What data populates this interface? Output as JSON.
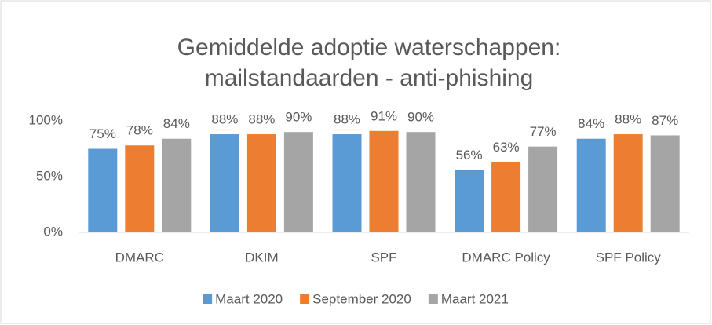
{
  "chart_data": {
    "type": "bar",
    "title": [
      "Gemiddelde adoptie waterschappen:",
      "mailstandaarden - anti-phishing"
    ],
    "categories": [
      "DMARC",
      "DKIM",
      "SPF",
      "DMARC Policy",
      "SPF Policy"
    ],
    "series": [
      {
        "name": "Maart 2020",
        "color": "#5b9bd5",
        "values": [
          75,
          88,
          88,
          56,
          84
        ],
        "value_labels": [
          "75%",
          "88%",
          "88%",
          "56%",
          "84%"
        ]
      },
      {
        "name": "September 2020",
        "color": "#ed7d31",
        "values": [
          78,
          88,
          91,
          63,
          88
        ],
        "value_labels": [
          "78%",
          "88%",
          "91%",
          "63%",
          "88%"
        ]
      },
      {
        "name": "Maart 2021",
        "color": "#a5a5a5",
        "values": [
          84,
          90,
          90,
          77,
          87
        ],
        "value_labels": [
          "84%",
          "90%",
          "90%",
          "77%",
          "87%"
        ]
      }
    ],
    "ylim": [
      0,
      100
    ],
    "yticks": [
      {
        "value": 0,
        "label": "0%"
      },
      {
        "value": 50,
        "label": "50%"
      },
      {
        "value": 100,
        "label": "100%"
      }
    ],
    "grid": false,
    "legend": "bottom"
  }
}
